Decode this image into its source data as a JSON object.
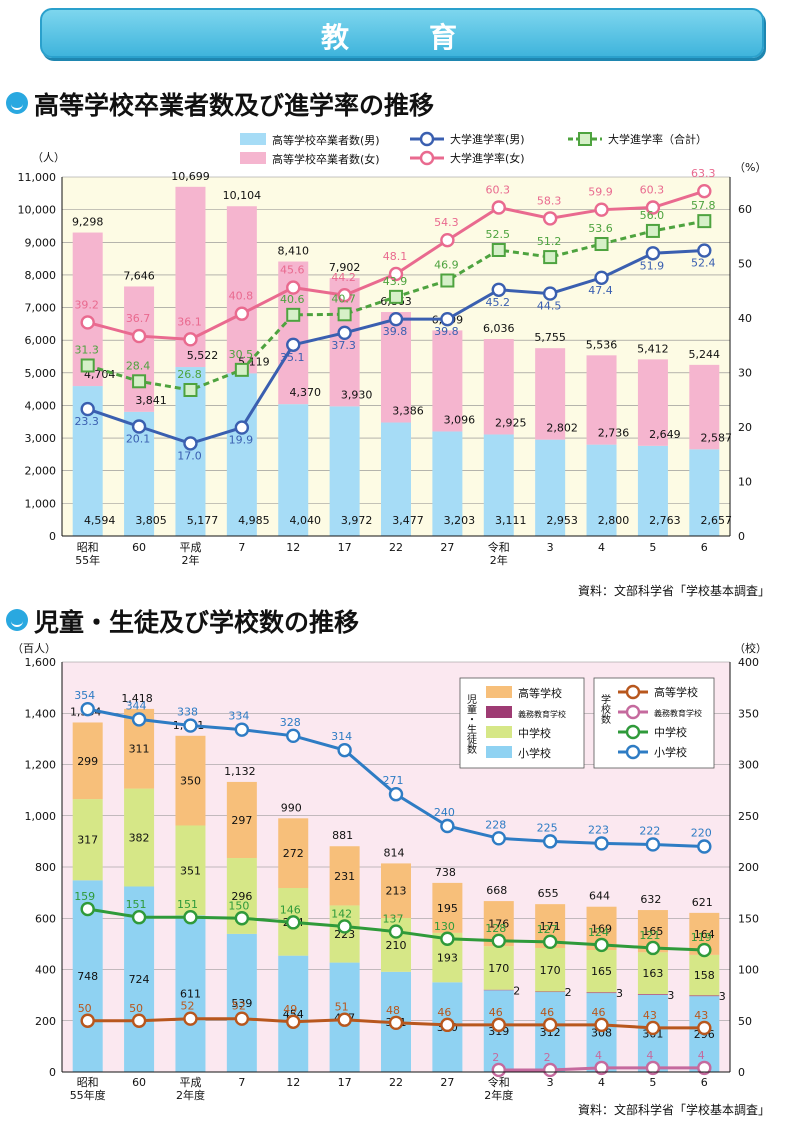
{
  "header": {
    "title": "教　育"
  },
  "section1": {
    "title": "高等学校卒業者数及び進学率の推移",
    "source": "資料：文部科学省「学校基本調査」"
  },
  "section2": {
    "title": "児童・生徒及び学校数の推移",
    "source": "資料：文部科学省「学校基本調査」"
  },
  "chart_data": [
    {
      "type": "bar",
      "y_unit_left": "（人）",
      "y_unit_right": "（%）",
      "ylim_left": [
        0,
        11000
      ],
      "ylim_right": [
        0,
        63.3
      ],
      "y_ticks_left": [
        "0",
        "1,000",
        "2,000",
        "3,000",
        "4,000",
        "5,000",
        "6,000",
        "7,000",
        "8,000",
        "9,000",
        "10,000",
        "11,000"
      ],
      "y_ticks_right": [
        "0",
        "10",
        "20",
        "30",
        "40",
        "50",
        "60"
      ],
      "categories": [
        [
          "昭和",
          "55年"
        ],
        [
          "60"
        ],
        [
          "平成",
          "2年"
        ],
        [
          "7"
        ],
        [
          "12"
        ],
        [
          "17"
        ],
        [
          "22"
        ],
        [
          "27"
        ],
        [
          "令和",
          "2年"
        ],
        [
          "3"
        ],
        [
          "4"
        ],
        [
          "5"
        ],
        [
          "6"
        ]
      ],
      "bar_series": [
        {
          "name": "高等学校卒業者数(男)",
          "color": "#a6dcf6",
          "values": [
            4594,
            3805,
            5177,
            4985,
            4040,
            3972,
            3477,
            3203,
            3111,
            2953,
            2800,
            2763,
            2657
          ]
        },
        {
          "name": "高等学校卒業者数(女)",
          "color": "#f5b5cf",
          "values": [
            4704,
            3841,
            5522,
            5119,
            4370,
            3930,
            3386,
            3096,
            2925,
            2802,
            2736,
            2649,
            2587
          ]
        }
      ],
      "totals": [
        9298,
        7646,
        10699,
        10104,
        8410,
        7902,
        6863,
        6299,
        6036,
        5755,
        5536,
        5412,
        5244
      ],
      "line_series": [
        {
          "name": "大学進学率(男)",
          "color": "#3a5fb0",
          "values": [
            23.3,
            20.1,
            17.0,
            19.9,
            35.1,
            37.3,
            39.8,
            39.8,
            45.2,
            44.5,
            47.4,
            51.9,
            52.4
          ]
        },
        {
          "name": "大学進学率(女)",
          "color": "#e96a8f",
          "values": [
            39.2,
            36.7,
            36.1,
            40.8,
            45.6,
            44.2,
            48.1,
            54.3,
            60.3,
            58.3,
            59.9,
            60.3,
            63.3
          ]
        },
        {
          "name": "大学進学率（合計）",
          "color": "#4ea33f",
          "values": [
            31.3,
            28.4,
            26.8,
            30.5,
            40.6,
            40.7,
            43.9,
            46.9,
            52.5,
            51.2,
            53.6,
            56.0,
            57.8
          ]
        }
      ]
    },
    {
      "type": "bar",
      "y_unit_left": "（百人）",
      "y_unit_right": "（校）",
      "ylim_left": [
        0,
        1600
      ],
      "ylim_right": [
        0,
        400
      ],
      "y_ticks_left": [
        "0",
        "200",
        "400",
        "600",
        "800",
        "1,000",
        "1,200",
        "1,400",
        "1,600"
      ],
      "y_ticks_right": [
        "0",
        "50",
        "100",
        "150",
        "200",
        "250",
        "300",
        "350",
        "400"
      ],
      "categories": [
        [
          "昭和",
          "55年度"
        ],
        [
          "60"
        ],
        [
          "平成",
          "2年度"
        ],
        [
          "7"
        ],
        [
          "12"
        ],
        [
          "17"
        ],
        [
          "22"
        ],
        [
          "27"
        ],
        [
          "令和",
          "2年度"
        ],
        [
          "3"
        ],
        [
          "4"
        ],
        [
          "5"
        ],
        [
          "6"
        ]
      ],
      "legend_group_bar": "児童・生徒数",
      "legend_group_line": "学校数",
      "bar_series": [
        {
          "name": "小学校",
          "color": "#8fd2f2",
          "values": [
            748,
            724,
            611,
            539,
            454,
            427,
            391,
            350,
            319,
            312,
            308,
            301,
            296
          ],
          "labels": [
            "748",
            "724",
            "611",
            "539",
            "454",
            "427",
            "391",
            "350",
            "319",
            "312",
            "308",
            "301",
            "296"
          ]
        },
        {
          "name": "義務教育学校",
          "color": "#9e3b73",
          "values": [
            0,
            0,
            0,
            0,
            0,
            0,
            0,
            0,
            2,
            2,
            3,
            3,
            3
          ],
          "labels": [
            "",
            "",
            "",
            "",
            "",
            "",
            "",
            "",
            "2",
            "2",
            "3",
            "3",
            "3"
          ]
        },
        {
          "name": "中学校",
          "color": "#d6e787",
          "values": [
            317,
            382,
            351,
            296,
            264,
            223,
            210,
            193,
            170,
            170,
            165,
            163,
            158
          ],
          "labels": [
            "317",
            "382",
            "351",
            "296",
            "264",
            "223",
            "210",
            "193",
            "170",
            "170",
            "165",
            "163",
            "158"
          ]
        },
        {
          "name": "高等学校",
          "color": "#f7bf7a",
          "values": [
            299,
            311,
            350,
            297,
            272,
            231,
            213,
            195,
            176,
            171,
            169,
            165,
            164
          ],
          "labels": [
            "299",
            "311",
            "350",
            "297",
            "272",
            "231",
            "213",
            "195",
            "176",
            "171",
            "169",
            "165",
            "164"
          ]
        }
      ],
      "totals": [
        "1,364",
        "1,418",
        "1,311",
        "1,132",
        "990",
        "881",
        "814",
        "738",
        "668",
        "655",
        "644",
        "632",
        "621"
      ],
      "line_series": [
        {
          "name": "小学校",
          "color": "#2e7cc4",
          "values": [
            354,
            344,
            338,
            334,
            328,
            314,
            271,
            240,
            228,
            225,
            223,
            222,
            220
          ]
        },
        {
          "name": "中学校",
          "color": "#2f9a3a",
          "values": [
            159,
            151,
            151,
            150,
            146,
            142,
            137,
            130,
            128,
            127,
            124,
            121,
            119
          ]
        },
        {
          "name": "高等学校",
          "color": "#b8571d",
          "values": [
            50,
            50,
            52,
            52,
            49,
            51,
            48,
            46,
            46,
            46,
            46,
            43,
            43
          ]
        },
        {
          "name": "義務教育学校",
          "color": "#c56a9e",
          "values": [
            null,
            null,
            null,
            null,
            null,
            null,
            null,
            null,
            2,
            2,
            4,
            4,
            4
          ]
        }
      ]
    }
  ]
}
